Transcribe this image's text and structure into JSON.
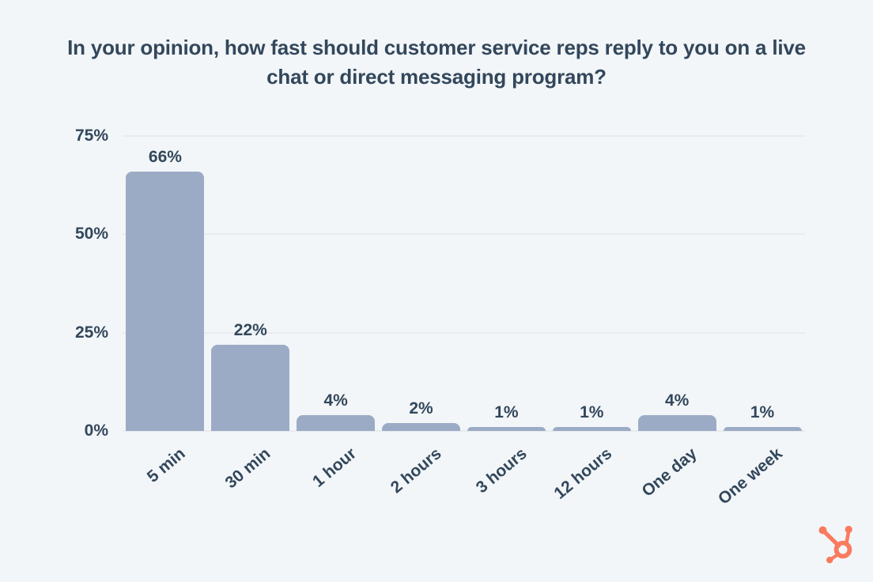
{
  "page": {
    "background_color": "#f2f6f9"
  },
  "chart_data": {
    "type": "bar",
    "title": "In your opinion, how fast should customer service reps reply to you on a live chat or direct messaging program?",
    "categories": [
      "5 min",
      "30 min",
      "1 hour",
      "2 hours",
      "3 hours",
      "12 hours",
      "One day",
      "One week"
    ],
    "values": [
      66,
      22,
      4,
      2,
      1,
      1,
      4,
      1
    ],
    "value_labels": [
      "66%",
      "22%",
      "4%",
      "2%",
      "1%",
      "1%",
      "4%",
      "1%"
    ],
    "xlabel": "",
    "ylabel": "",
    "ylim": [
      0,
      75
    ],
    "y_axis": {
      "max": 75,
      "ticks": [
        {
          "value": 0,
          "label": "0%"
        },
        {
          "value": 25,
          "label": "25%"
        },
        {
          "value": 50,
          "label": "50%"
        },
        {
          "value": 75,
          "label": "75%"
        }
      ],
      "gridlines": [
        25,
        50,
        75
      ]
    },
    "grid": true,
    "legend": "none",
    "colors": {
      "bar": "#9cabc5",
      "title_text": "#33475b",
      "axis_text": "#33475b",
      "gridline": "#e8ecf1",
      "background": "#f2f6f9",
      "logo": "#f97b5e"
    }
  },
  "branding": {
    "logo_name": "hubspot-sprocket-logo"
  }
}
